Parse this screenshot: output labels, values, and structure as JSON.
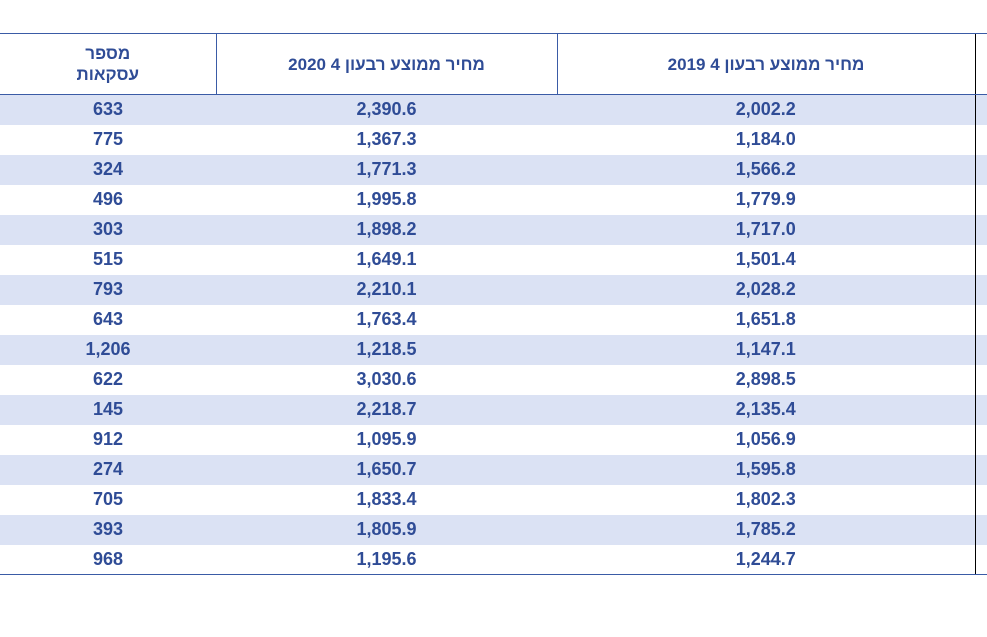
{
  "table": {
    "headers": {
      "count_line1": "מספר",
      "count_line2": "עסקאות",
      "price_2020": "מחיר ממוצע רבעון 4 2020",
      "price_2019": "מחיר ממוצע רבעון 4 2019"
    },
    "rows": [
      {
        "count": "633",
        "price_2020": "2,390.6",
        "price_2019": "2,002.2"
      },
      {
        "count": "775",
        "price_2020": "1,367.3",
        "price_2019": "1,184.0"
      },
      {
        "count": "324",
        "price_2020": "1,771.3",
        "price_2019": "1,566.2"
      },
      {
        "count": "496",
        "price_2020": "1,995.8",
        "price_2019": "1,779.9"
      },
      {
        "count": "303",
        "price_2020": "1,898.2",
        "price_2019": "1,717.0"
      },
      {
        "count": "515",
        "price_2020": "1,649.1",
        "price_2019": "1,501.4"
      },
      {
        "count": "793",
        "price_2020": "2,210.1",
        "price_2019": "2,028.2"
      },
      {
        "count": "643",
        "price_2020": "1,763.4",
        "price_2019": "1,651.8"
      },
      {
        "count": "1,206",
        "price_2020": "1,218.5",
        "price_2019": "1,147.1"
      },
      {
        "count": "622",
        "price_2020": "3,030.6",
        "price_2019": "2,898.5"
      },
      {
        "count": "145",
        "price_2020": "2,218.7",
        "price_2019": "2,135.4"
      },
      {
        "count": "912",
        "price_2020": "1,095.9",
        "price_2019": "1,056.9"
      },
      {
        "count": "274",
        "price_2020": "1,650.7",
        "price_2019": "1,595.8"
      },
      {
        "count": "705",
        "price_2020": "1,833.4",
        "price_2019": "1,802.3"
      },
      {
        "count": "393",
        "price_2020": "1,805.9",
        "price_2019": "1,785.2"
      },
      {
        "count": "968",
        "price_2020": "1,195.6",
        "price_2019": "1,244.7"
      }
    ]
  }
}
